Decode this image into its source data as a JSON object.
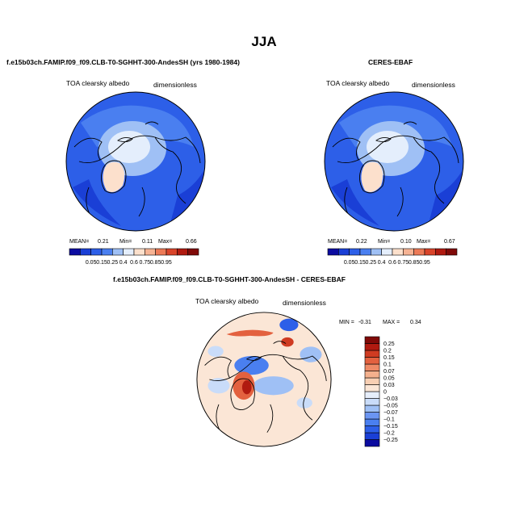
{
  "figure": {
    "season": "JJA",
    "left_panel": {
      "case_title": "f.e15b03ch.FAMIP.f09_f09.CLB-T0-SGHHT-300-AndesSH (yrs 1980-1984)",
      "variable": "TOA clearsky albedo",
      "units": "dimensionless",
      "stats": {
        "mean_label": "MEAN=",
        "mean": "0.21",
        "min_label": "Min=",
        "min": "0.11",
        "max_label": "Max=",
        "max": "0.66"
      }
    },
    "right_panel": {
      "case_title": "CERES-EBAF",
      "variable": "TOA clearsky albedo",
      "units": "dimensionless",
      "stats": {
        "mean_label": "MEAN=",
        "mean": "0.22",
        "min_label": "Min=",
        "min": "0.10",
        "max_label": "Max=",
        "max": "0.67"
      }
    },
    "diff_panel": {
      "case_title": "f.e15b03ch.FAMIP.f09_f09.CLB-T0-SGHHT-300-AndesSH - CERES-EBAF",
      "variable": "TOA clearsky albedo",
      "units": "dimensionless",
      "stats": {
        "min_label": "MIN =",
        "min": "-0.31",
        "max_label": "MAX =",
        "max": "0.34"
      }
    }
  },
  "colors": {
    "abs_scale": [
      "#0b0ba0",
      "#1a3fd6",
      "#2d5fe8",
      "#4a7ff0",
      "#9fc0f5",
      "#e4eefc",
      "#fce0cc",
      "#f6b394",
      "#ec7a57",
      "#d9442a",
      "#b01a10",
      "#800a08"
    ],
    "diff_scale": [
      "#0b0ba0",
      "#1a3fd6",
      "#2d5fe8",
      "#4a7ff0",
      "#6b95f2",
      "#9fc0f5",
      "#c9dcf9",
      "#e6eefb",
      "#fbe6d6",
      "#f8cfb3",
      "#f4b08d",
      "#ee8a66",
      "#e3613f",
      "#cf3b22",
      "#b01a10",
      "#800a08"
    ],
    "coastline": "#000000"
  },
  "chart_data": [
    {
      "type": "heatmap",
      "projection": "north polar stereographic",
      "title": "f.e15b03ch.FAMIP.f09_f09.CLB-T0-SGHHT-300-AndesSH (yrs 1980-1984)",
      "variable": "TOA clearsky albedo",
      "units": "dimensionless",
      "season": "JJA",
      "stats": {
        "mean": 0.21,
        "min": 0.11,
        "max": 0.66
      },
      "levels": [
        0.05,
        0.15,
        0.25,
        0.4,
        0.6,
        0.75,
        0.85,
        0.95
      ],
      "level_labels": [
        "0.05",
        "0.15",
        "0.25",
        "0.4",
        "0.6",
        "0.75",
        "0.85",
        "0.95"
      ]
    },
    {
      "type": "heatmap",
      "projection": "north polar stereographic",
      "title": "CERES-EBAF",
      "variable": "TOA clearsky albedo",
      "units": "dimensionless",
      "season": "JJA",
      "stats": {
        "mean": 0.22,
        "min": 0.1,
        "max": 0.67
      },
      "levels": [
        0.05,
        0.15,
        0.25,
        0.4,
        0.6,
        0.75,
        0.85,
        0.95
      ],
      "level_labels": [
        "0.05",
        "0.15",
        "0.25",
        "0.4",
        "0.6",
        "0.75",
        "0.85",
        "0.95"
      ]
    },
    {
      "type": "heatmap",
      "projection": "north polar stereographic",
      "title": "f.e15b03ch.FAMIP.f09_f09.CLB-T0-SGHHT-300-AndesSH - CERES-EBAF",
      "variable": "TOA clearsky albedo",
      "units": "dimensionless",
      "season": "JJA",
      "stats": {
        "min": -0.31,
        "max": 0.34
      },
      "levels": [
        -0.25,
        -0.2,
        -0.15,
        -0.1,
        -0.07,
        -0.05,
        -0.03,
        0,
        0.03,
        0.05,
        0.07,
        0.1,
        0.15,
        0.2,
        0.25
      ],
      "level_labels": [
        "−0.25",
        "−0.2",
        "−0.15",
        "−0.1",
        "−0.07",
        "−0.05",
        "−0.03",
        "0",
        "0.03",
        "0.05",
        "0.07",
        "0.1",
        "0.15",
        "0.2",
        "0.25"
      ]
    }
  ]
}
